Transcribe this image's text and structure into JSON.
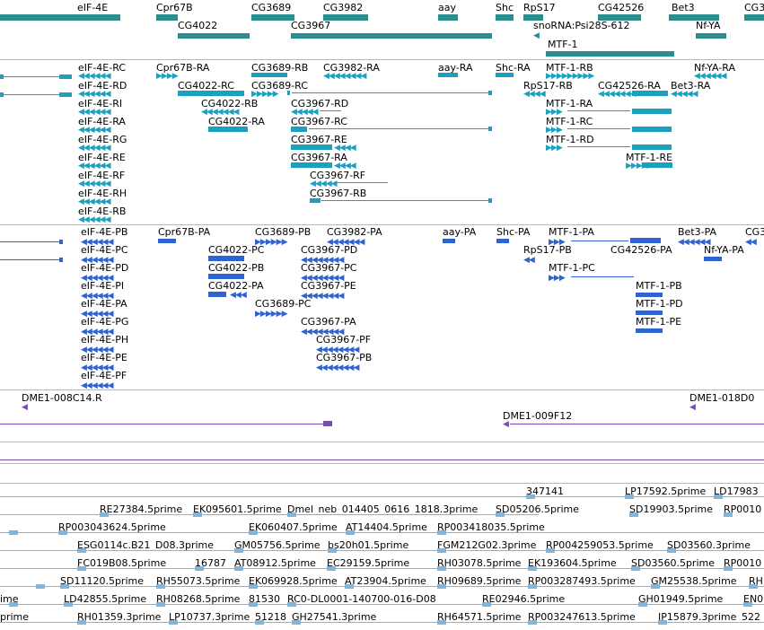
{
  "tracks": {
    "genes": [
      "eIF-4E",
      "Cpr67B",
      "CG3689",
      "CG3982",
      "aay",
      "Shc",
      "RpS17",
      "CG42526",
      "Bet3",
      "CG3",
      "CG4022",
      "CG3967",
      "snoRNA:Psi28S-612",
      "Nf-YA",
      "MTF-1"
    ],
    "transcripts_r": [
      "eIF-4E-RC",
      "Cpr67B-RA",
      "CG3689-RB",
      "CG3982-RA",
      "aay-RA",
      "Shc-RA",
      "MTF-1-RB",
      "Nf-YA-RA",
      "eIF-4E-RD",
      "CG4022-RC",
      "CG3689-RC",
      "RpS17-RB",
      "CG42526-RA",
      "Bet3-RA",
      "eIF-4E-RI",
      "CG4022-RB",
      "CG3967-RD",
      "MTF-1-RA",
      "eIF-4E-RA",
      "CG4022-RA",
      "CG3967-RC",
      "MTF-1-RC",
      "eIF-4E-RG",
      "CG3967-RE",
      "MTF-1-RD",
      "eIF-4E-RE",
      "CG3967-RA",
      "MTF-1-RE",
      "eIF-4E-RF",
      "CG3967-RF",
      "eIF-4E-RH",
      "CG3967-RB",
      "eIF-4E-RB"
    ],
    "transcripts_p": [
      "eIF-4E-PB",
      "Cpr67B-PA",
      "CG3689-PB",
      "CG3982-PA",
      "aay-PA",
      "Shc-PA",
      "MTF-1-PA",
      "Bet3-PA",
      "CG3",
      "eIF-4E-PC",
      "CG4022-PC",
      "CG3967-PD",
      "RpS17-PB",
      "CG42526-PA",
      "Nf-YA-PA",
      "eIF-4E-PD",
      "CG4022-PB",
      "CG3967-PC",
      "MTF-1-PC",
      "eIF-4E-PI",
      "CG4022-PA",
      "CG3967-PE",
      "MTF-1-PB",
      "eIF-4E-PA",
      "CG3689-PC",
      "MTF-1-PD",
      "eIF-4E-PG",
      "CG3967-PA",
      "MTF-1-PE",
      "eIF-4E-PH",
      "CG3967-PF",
      "eIF-4E-PE",
      "CG3967-PB",
      "eIF-4E-PF"
    ],
    "clones": [
      "DME1-008C14.R",
      "DME1-018D0",
      "DME1-009F12"
    ],
    "ests": [
      "347141",
      "LP17592.5prime",
      "LD17983",
      "RE27384.5prime",
      "EK095601.5prime",
      "Dmel_neb_014405_0616_1818.3prime",
      "SD05206.5prime",
      "SD19903.5prime",
      "RP0010",
      "RP003043624.5prime",
      "EK060407.5prime",
      "AT14404.5prime",
      "RP003418035.5prime",
      "ESG0114c.B21_D08.3prime",
      "GM05756.5prime",
      "bs20h01.5prime",
      "FGM212G02.3prime",
      "RP004259053.5prime",
      "SD03560.3prime",
      "FC019B08.5prime",
      "16787",
      "AT08912.5prime",
      "EC29159.5prime",
      "RH03078.5prime",
      "EK193604.5prime",
      "SD03560.5prime",
      "RP0010",
      "SD11120.5prime",
      "RH55073.5prime",
      "EK069928.5prime",
      "AT23904.5prime",
      "RH09689.5prime",
      "RP003287493.5prime",
      "GM25538.5prime",
      "RH",
      "ime",
      "LD42855.5prime",
      "RH08268.5prime",
      "81530",
      "RC0-DL0001-140700-016-D08",
      "RE02946.5prime",
      "GH01949.5prime",
      "EN0",
      "prime",
      "RH01359.3prime",
      "LP10737.3prime",
      "51218",
      "GH27541.3prime",
      "RH64571.5prime",
      "RP003247613.5prime",
      "IP15879.3prime",
      "522"
    ]
  },
  "colors": {
    "gene": "#2b8e8e",
    "transcript_r": "#1ba0bf",
    "transcript_p": "#2f63d0",
    "clone": "#7a4bb5",
    "est": "#7fb6e0"
  }
}
